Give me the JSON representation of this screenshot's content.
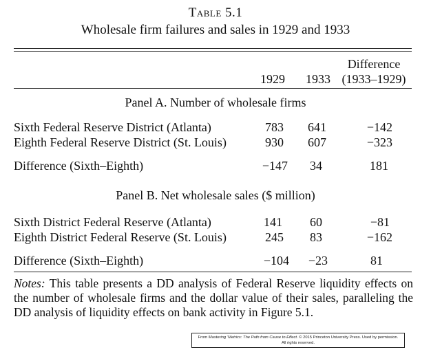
{
  "caption": {
    "number": "Table 5.1",
    "title": "Wholesale firm failures and sales in 1929 and 1933"
  },
  "columns": {
    "year1": "1929",
    "year2": "1933",
    "diff_line1": "Difference",
    "diff_line2": "(1933–1929)"
  },
  "panel_a": {
    "title": "Panel A. Number of wholesale firms",
    "rows": [
      {
        "label": "Sixth Federal Reserve District (Atlanta)",
        "v1929": "783",
        "v1933": "641",
        "diff": "−142"
      },
      {
        "label": "Eighth Federal Reserve District (St. Louis)",
        "v1929": "930",
        "v1933": "607",
        "diff": "−323"
      },
      {
        "label": "Difference (Sixth–Eighth)",
        "v1929": "−147",
        "v1933": "34",
        "diff": "181"
      }
    ]
  },
  "panel_b": {
    "title": "Panel B. Net wholesale sales ($ million)",
    "rows": [
      {
        "label": "Sixth District Federal Reserve (Atlanta)",
        "v1929": "141",
        "v1933": "60",
        "diff": "−81"
      },
      {
        "label": "Eighth District Federal Reserve (St. Louis)",
        "v1929": "245",
        "v1933": "83",
        "diff": "−162"
      },
      {
        "label": "Difference (Sixth–Eighth)",
        "v1929": "−104",
        "v1933": "−23",
        "diff": "81"
      }
    ]
  },
  "notes": {
    "label": "Notes:",
    "text": " This table presents a DD analysis of Federal Reserve liquidity effects on the number of wholesale firms and the dollar value of their sales, paralleling the DD analysis of liquidity effects on bank activity in Figure 5.1."
  },
  "credit": {
    "line1_prefix": "From ",
    "line1_book": "Mastering ’Metrics: The Path from Cause to Effect",
    "line1_suffix": ". © 2015 Princeton University Press. Used by permission.",
    "line2": "All rights reserved."
  }
}
